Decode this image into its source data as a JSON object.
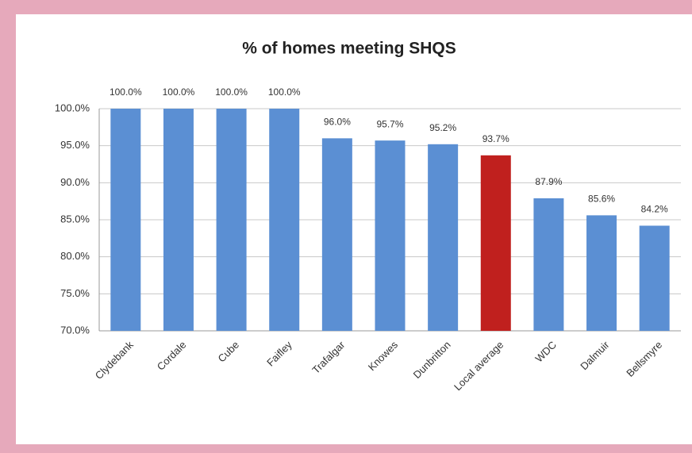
{
  "chart_data": {
    "type": "bar",
    "title": "% of homes meeting SHQS",
    "categories": [
      "Clydebank",
      "Cordale",
      "Cube",
      "Faifley",
      "Trafalgar",
      "Knowes",
      "Dunbritton",
      "Local average",
      "WDC",
      "Dalmuir",
      "Bellsmyre"
    ],
    "values": [
      100.0,
      100.0,
      100.0,
      100.0,
      96.0,
      95.7,
      95.2,
      93.7,
      87.9,
      85.6,
      84.2
    ],
    "value_labels": [
      "100.0%",
      "100.0%",
      "100.0%",
      "100.0%",
      "96.0%",
      "95.7%",
      "95.2%",
      "93.7%",
      "87.9%",
      "85.6%",
      "84.2%"
    ],
    "colors": [
      "#5b8fd3",
      "#5b8fd3",
      "#5b8fd3",
      "#5b8fd3",
      "#5b8fd3",
      "#5b8fd3",
      "#5b8fd3",
      "#c0201e",
      "#5b8fd3",
      "#5b8fd3",
      "#5b8fd3"
    ],
    "ylim": [
      70,
      100
    ],
    "yticks": [
      {
        "value": 70,
        "label": "70.0%"
      },
      {
        "value": 75,
        "label": "75.0%"
      },
      {
        "value": 80,
        "label": "80.0%"
      },
      {
        "value": 85,
        "label": "85.0%"
      },
      {
        "value": 90,
        "label": "90.0%"
      },
      {
        "value": 95,
        "label": "95.0%"
      },
      {
        "value": 100,
        "label": "100.0%"
      }
    ],
    "grid": true
  }
}
